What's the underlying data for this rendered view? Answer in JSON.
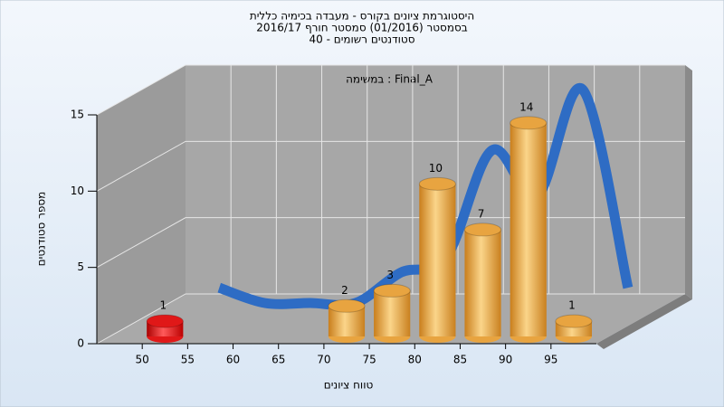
{
  "chart_data": {
    "type": "histogram",
    "title": [
      "היסטוגרמת ציונים בקורס - מעבדה בכימיה כללית",
      "בסמסטר  (01/2016)  סמסטר חורף  2016/17",
      "סטודנטים רשומים - 40"
    ],
    "annotation": "במשימה : Final_A",
    "xlabel": "טווח ציונים",
    "ylabel": "מספר סטודנטים",
    "bins": [
      50,
      55,
      60,
      65,
      70,
      75,
      80,
      85,
      90,
      95,
      100
    ],
    "values": [
      1,
      0,
      0,
      0,
      2,
      3,
      10,
      7,
      14,
      1
    ],
    "colors": [
      "#e01818",
      "#e8a440",
      "#e8a440",
      "#e8a440",
      "#e8a440",
      "#e8a440",
      "#e8a440",
      "#e8a440",
      "#e8a440",
      "#e8a440"
    ],
    "curve_color": "#2e6cc4",
    "xlim": [
      45,
      100
    ],
    "xticks": [
      50,
      55,
      60,
      65,
      70,
      75,
      80,
      85,
      90,
      95
    ],
    "ylim": [
      0,
      15
    ],
    "yticks": [
      0,
      5,
      10,
      15
    ],
    "grid": true
  }
}
